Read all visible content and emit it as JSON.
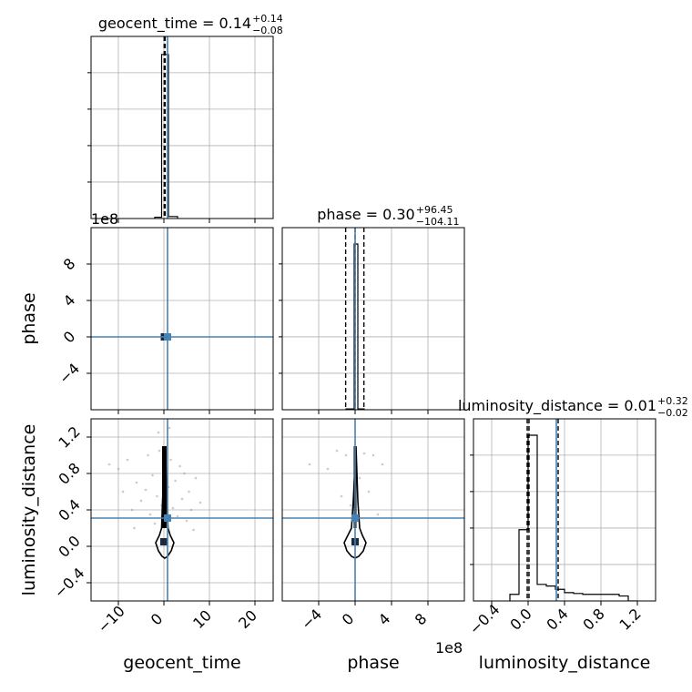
{
  "chart_data": {
    "type": "corner",
    "parameters": [
      "geocent_time",
      "phase",
      "luminosity_distance"
    ],
    "colors": {
      "truth": "#4682b4",
      "hist": "#000000",
      "grid": "#b0b0b0",
      "points": "#8c8c8c"
    },
    "titles": [
      {
        "param": "geocent_time",
        "base": "geocent_time = 0.14",
        "sup": "+0.14",
        "sub": "−0.08"
      },
      {
        "param": "phase",
        "base": "phase = 0.30",
        "sup": "+96.45",
        "sub": "−104.11"
      },
      {
        "param": "luminosity_distance",
        "base": "luminosity_distance = 0.01",
        "sup": "+0.32",
        "sub": "−0.02"
      }
    ],
    "axes": {
      "geocent_time": {
        "label": "geocent_time",
        "range": [
          -16,
          24
        ],
        "ticks": [
          -10,
          0,
          10,
          20
        ],
        "tick_labels": [
          "−10",
          "0",
          "10",
          "20"
        ],
        "offset_text": ""
      },
      "phase": {
        "label": "phase",
        "range": [
          -800000000,
          1200000000
        ],
        "ticks": [
          -400000000,
          0,
          400000000,
          800000000
        ],
        "tick_labels": [
          "−4",
          "0",
          "4",
          "8"
        ],
        "offset_text": "1e8"
      },
      "luminosity_distance": {
        "label": "luminosity_distance",
        "range": [
          -0.6,
          1.4
        ],
        "ticks": [
          -0.4,
          0.0,
          0.4,
          0.8,
          1.2
        ],
        "tick_labels": [
          "−0.4",
          "0.0",
          "0.4",
          "0.8",
          "1.2"
        ],
        "offset_text": ""
      }
    },
    "row_axes": {
      "phase": {
        "tick_labels": [
          "−4",
          "0",
          "4",
          "8"
        ],
        "offset_text": "1e8"
      },
      "luminosity_distance": {
        "tick_labels": [
          "−0.4",
          "0.0",
          "0.4",
          "0.8",
          "1.2"
        ]
      }
    },
    "truths": {
      "geocent_time": 0.8,
      "phase": 0.0,
      "luminosity_distance": 0.31
    },
    "quantiles": {
      "geocent_time": [
        0.06,
        0.14,
        0.28
      ],
      "phase": [
        -103810000,
        300000,
        96750000
      ],
      "luminosity_distance": [
        -0.01,
        0.01,
        0.33
      ]
    },
    "histograms": {
      "geocent_time": {
        "bin_edges": [
          -2.0,
          -0.5,
          0.0,
          1.0,
          3.0
        ],
        "values": [
          0.008,
          0.99,
          0.99,
          0.012
        ]
      },
      "phase": {
        "bin_edges": [
          -100000000,
          -10000000,
          10000000,
          30000000,
          100000000
        ],
        "values": [
          0.005,
          1.0,
          1.0,
          0.005
        ]
      },
      "luminosity_distance": {
        "bin_edges": [
          -0.2,
          -0.1,
          0.0,
          0.1,
          0.2,
          0.3,
          0.4,
          0.5,
          0.6,
          0.7,
          0.8,
          0.9,
          1.0,
          1.1,
          1.2
        ],
        "values": [
          0.04,
          0.43,
          1.0,
          0.1,
          0.09,
          0.07,
          0.05,
          0.045,
          0.04,
          0.04,
          0.04,
          0.04,
          0.03,
          0.0
        ]
      }
    },
    "scatter_2d": {
      "geocent_time_luminosity_distance": [
        [
          -12,
          0.9
        ],
        [
          -10,
          0.85
        ],
        [
          -8,
          0.95
        ],
        [
          -6,
          0.7
        ],
        [
          -5,
          0.5
        ],
        [
          -4,
          0.62
        ],
        [
          -3,
          0.35
        ],
        [
          -2.5,
          0.78
        ],
        [
          -2,
          0.25
        ],
        [
          -1.5,
          0.55
        ],
        [
          -1,
          1.05
        ],
        [
          -0.5,
          0.45
        ],
        [
          1,
          0.65
        ],
        [
          1.5,
          0.95
        ],
        [
          2,
          0.42
        ],
        [
          2.5,
          0.72
        ],
        [
          3,
          0.33
        ],
        [
          3.5,
          0.88
        ],
        [
          4,
          0.52
        ],
        [
          5,
          0.28
        ],
        [
          5.5,
          0.6
        ],
        [
          6,
          0.4
        ],
        [
          7,
          0.75
        ],
        [
          8,
          0.48
        ],
        [
          -7,
          0.4
        ],
        [
          -9,
          0.6
        ],
        [
          -3.5,
          1.0
        ],
        [
          4.5,
          0.8
        ],
        [
          -6.5,
          0.2
        ],
        [
          6.5,
          0.18
        ],
        [
          -1.2,
          1.25
        ],
        [
          1.2,
          1.3
        ]
      ],
      "phase_luminosity_distance": [
        [
          -200000000,
          1.05
        ],
        [
          -100000000,
          1.0
        ],
        [
          100000000,
          1.02
        ],
        [
          200000000,
          1.0
        ],
        [
          -300000000,
          0.85
        ],
        [
          300000000,
          0.9
        ],
        [
          -500000000,
          0.9
        ],
        [
          -150000000,
          0.55
        ],
        [
          150000000,
          0.6
        ],
        [
          50000000,
          0.75
        ],
        [
          -50000000,
          0.45
        ],
        [
          250000000,
          0.35
        ]
      ]
    },
    "contours": {
      "geocent_time_luminosity_distance": [
        [
          0.3,
          1.1
        ],
        [
          0.7,
          0.5
        ],
        [
          0.9,
          0.2
        ],
        [
          1.4,
          0.12
        ],
        [
          2.2,
          0.04
        ],
        [
          1.6,
          -0.05
        ],
        [
          0.8,
          -0.11
        ],
        [
          0.2,
          -0.13
        ],
        [
          -0.4,
          -0.11
        ],
        [
          -1.2,
          -0.05
        ],
        [
          -1.8,
          0.04
        ],
        [
          -1.0,
          0.12
        ],
        [
          -0.5,
          0.2
        ],
        [
          -0.3,
          0.5
        ],
        [
          0.3,
          1.1
        ]
      ],
      "phase_luminosity_distance": [
        [
          10000000,
          1.1
        ],
        [
          30000000,
          0.5
        ],
        [
          50000000,
          0.2
        ],
        [
          80000000,
          0.12
        ],
        [
          120000000,
          0.04
        ],
        [
          90000000,
          -0.05
        ],
        [
          40000000,
          -0.11
        ],
        [
          0,
          -0.13
        ],
        [
          -40000000,
          -0.11
        ],
        [
          -90000000,
          -0.05
        ],
        [
          -120000000,
          0.04
        ],
        [
          -80000000,
          0.12
        ],
        [
          -40000000,
          0.2
        ],
        [
          -20000000,
          0.5
        ],
        [
          10000000,
          1.1
        ]
      ]
    },
    "peaks_2d": {
      "geocent_time_phase": [
        0.1,
        0.0
      ],
      "geocent_time_luminosity_distance": [
        0.0,
        0.05
      ],
      "phase_luminosity_distance": [
        0,
        0.05
      ]
    }
  }
}
